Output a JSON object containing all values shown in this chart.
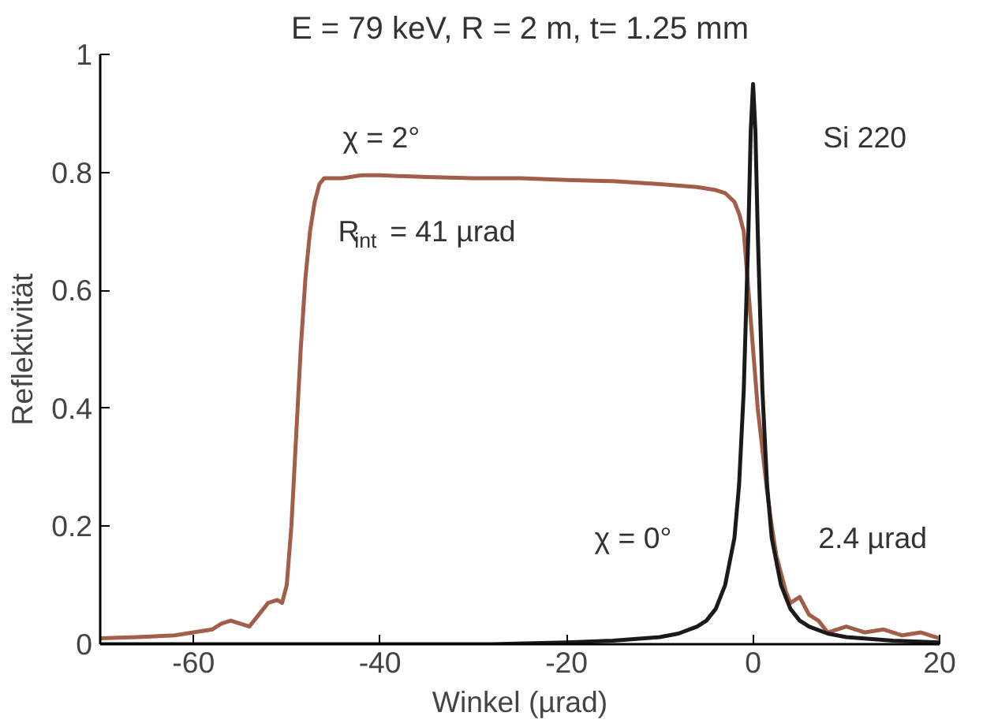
{
  "chart_data": {
    "type": "line",
    "title": "E = 79 keV, R = 2 m, t= 1.25 mm",
    "xlabel": "Winkel (µrad)",
    "ylabel": "Reflektivität",
    "xlim": [
      -70,
      20
    ],
    "xticks": [
      -60,
      -40,
      -20,
      0,
      20
    ],
    "ylim": [
      0,
      1
    ],
    "yticks": [
      0,
      0.2,
      0.4,
      0.6,
      0.8,
      1
    ],
    "grid": false,
    "marker": "none",
    "line_style": "solid",
    "series": [
      {
        "color": "#a25e48",
        "x": [
          -70,
          -66,
          -62,
          -60,
          -58,
          -57,
          -56,
          -55,
          -54,
          -53,
          -52,
          -51,
          -50.5,
          -50,
          -49.5,
          -49,
          -48.5,
          -48,
          -47.5,
          -47,
          -46.5,
          -46,
          -45,
          -44,
          -42,
          -40,
          -35,
          -30,
          -25,
          -20,
          -15,
          -10,
          -6,
          -4,
          -3,
          -2,
          -1.5,
          -1,
          -0.5,
          0,
          0.5,
          1,
          1.5,
          2,
          2.5,
          3,
          3.5,
          4,
          5,
          6,
          7,
          8,
          10,
          12,
          14,
          16,
          18,
          20
        ],
        "values": [
          0.01,
          0.012,
          0.015,
          0.02,
          0.025,
          0.035,
          0.04,
          0.035,
          0.03,
          0.05,
          0.07,
          0.075,
          0.07,
          0.1,
          0.2,
          0.35,
          0.5,
          0.62,
          0.7,
          0.75,
          0.78,
          0.79,
          0.79,
          0.79,
          0.795,
          0.795,
          0.792,
          0.79,
          0.79,
          0.787,
          0.785,
          0.78,
          0.775,
          0.77,
          0.765,
          0.75,
          0.73,
          0.7,
          0.6,
          0.5,
          0.4,
          0.33,
          0.26,
          0.2,
          0.15,
          0.12,
          0.09,
          0.07,
          0.08,
          0.05,
          0.04,
          0.02,
          0.03,
          0.02,
          0.025,
          0.015,
          0.02,
          0.01
        ]
      },
      {
        "color": "#1a1a1a",
        "x": [
          -70,
          -40,
          -28,
          -20,
          -15,
          -10,
          -8,
          -6,
          -5,
          -4,
          -3,
          -2,
          -1.5,
          -1,
          -0.5,
          -0.25,
          0,
          0.25,
          0.5,
          1,
          1.5,
          2,
          3,
          4,
          5,
          6,
          8,
          10,
          15,
          20
        ],
        "values": [
          0,
          0,
          0,
          0.003,
          0.006,
          0.012,
          0.018,
          0.03,
          0.04,
          0.06,
          0.1,
          0.18,
          0.27,
          0.43,
          0.7,
          0.87,
          0.95,
          0.87,
          0.7,
          0.43,
          0.27,
          0.18,
          0.1,
          0.06,
          0.04,
          0.03,
          0.018,
          0.012,
          0.006,
          0.003
        ]
      }
    ],
    "annotations": [
      "χ = 2°",
      "R$_{int}$= 41 µrad",
      "Si 220",
      "χ = 0°",
      "2.4 µrad"
    ]
  }
}
